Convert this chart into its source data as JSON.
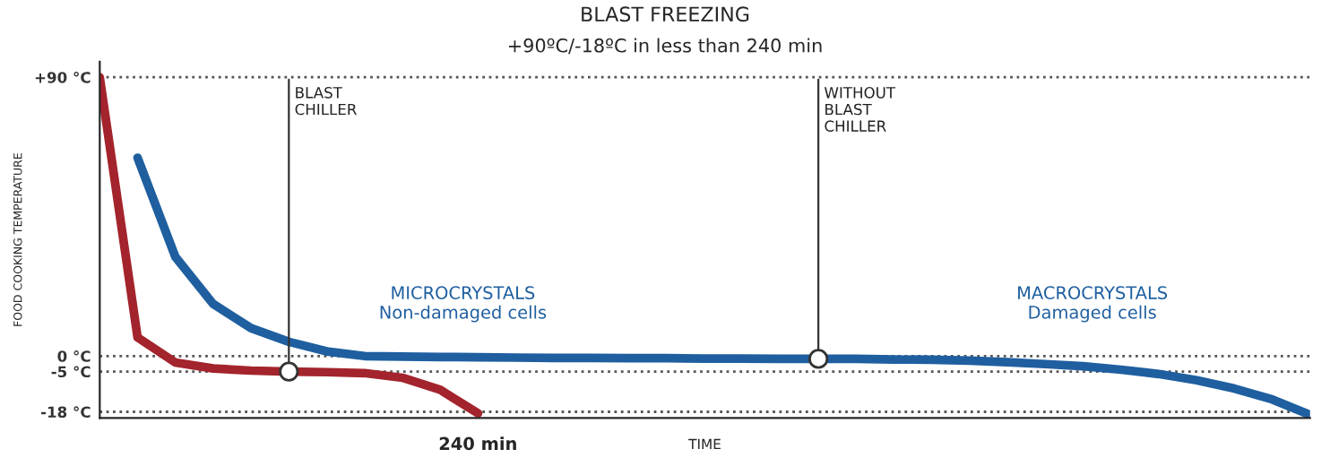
{
  "chart_data": {
    "type": "line",
    "title": "BLAST FREEZING",
    "subtitle": "+90ºC/-18ºC in less than 240 min",
    "xlabel": "TIME",
    "ylabel": "FOOD COOKING TEMPERATURE",
    "categories": [
      null,
      null,
      null,
      null,
      null,
      null,
      null,
      null,
      null,
      null,
      "240 min",
      null,
      null,
      null,
      null,
      null,
      null,
      null,
      null,
      null,
      null,
      null,
      null,
      null,
      null,
      null,
      null,
      null,
      null,
      null,
      null,
      null,
      null
    ],
    "ylim": [
      -20,
      95
    ],
    "yticks": [
      {
        "value": 90,
        "label": "+90 °C"
      },
      {
        "value": 0,
        "label": "0 °C"
      },
      {
        "value": -5,
        "label": "-5 °C"
      },
      {
        "value": -18,
        "label": "-18 °C"
      }
    ],
    "grid": "y",
    "legend": false,
    "line_style": "solid",
    "series": [
      {
        "color": "#a3242c",
        "values": [
          90,
          6,
          -2.1,
          -4,
          -4.7,
          -5,
          -5.2,
          -5.5,
          -7,
          -10.9,
          -18.5,
          null,
          null,
          null,
          null,
          null,
          null,
          null,
          null,
          null,
          null,
          null,
          null,
          null,
          null,
          null,
          null,
          null,
          null,
          null,
          null,
          null,
          null
        ]
      },
      {
        "color": "#1f5fa0",
        "values": [
          null,
          64,
          32,
          16.8,
          9,
          4.6,
          1.5,
          0,
          -0.2,
          -0.3,
          -0.4,
          -0.5,
          -0.6,
          -0.6,
          -0.7,
          -0.7,
          -0.8,
          -0.8,
          -0.9,
          -0.9,
          -0.9,
          -1.1,
          -1.2,
          -1.5,
          -2,
          -2.6,
          -3.3,
          -4.4,
          -5.8,
          -7.8,
          -10.5,
          -14,
          -19
        ]
      }
    ],
    "annotations": [
      "BLAST\nCHILLER",
      "WITHOUT\nBLAST\nCHILLER",
      "MICROCRYSTALS\nNon-damaged cells",
      "MACROCRYSTALS\nDamaged cells"
    ]
  }
}
